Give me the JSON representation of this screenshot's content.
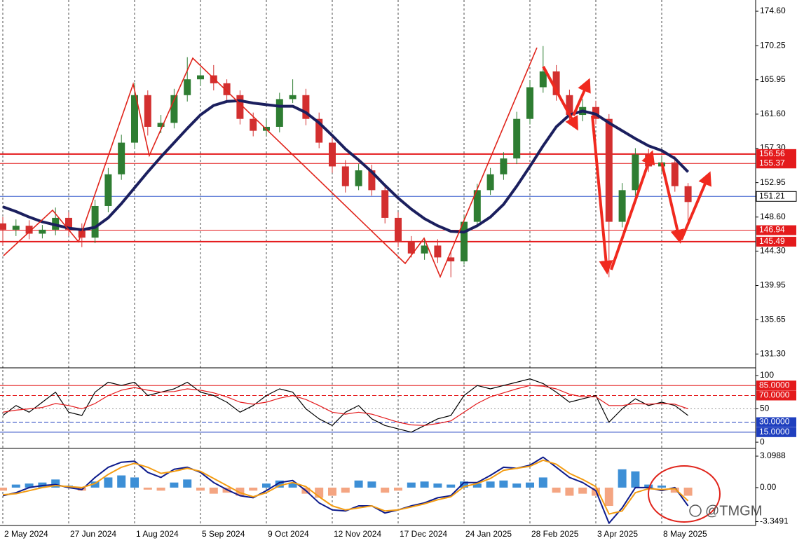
{
  "chart_data": [
    {
      "type": "candlestick",
      "categories": [
        "2 May 2024",
        null,
        null,
        null,
        null,
        "27 Jun 2024",
        null,
        null,
        null,
        null,
        "1 Aug 2024",
        null,
        null,
        null,
        null,
        "5 Sep 2024",
        null,
        null,
        null,
        null,
        "9 Oct 2024",
        null,
        null,
        null,
        null,
        "12 Nov 2024",
        null,
        null,
        null,
        null,
        "17 Dec 2024",
        null,
        null,
        null,
        null,
        "24 Jan 2025",
        null,
        null,
        null,
        null,
        "28 Feb 2025",
        null,
        null,
        null,
        null,
        "3 Apr 2025",
        null,
        null,
        null,
        null,
        "8 May 2025",
        null,
        null
      ],
      "open": [
        147.8,
        147,
        147.5,
        146.5,
        147,
        148.5,
        147,
        146,
        150,
        154,
        158,
        164,
        160,
        160.5,
        164,
        166,
        166.5,
        165.5,
        164,
        161,
        159.5,
        160,
        163.5,
        164,
        161,
        158,
        155,
        152.5,
        154.5,
        152,
        148.5,
        145.5,
        144,
        145,
        143.5,
        143,
        148,
        152,
        154,
        156,
        161,
        165,
        167,
        164,
        161.5,
        162.5,
        161,
        148,
        152,
        156.5,
        155,
        155.5,
        152.5
      ],
      "high": [
        148.6,
        148.3,
        148.2,
        147.6,
        149.8,
        149.2,
        147.8,
        150.8,
        154.8,
        159,
        165.6,
        164.6,
        161.5,
        164.8,
        168.8,
        167.5,
        167.8,
        166,
        164.6,
        161.8,
        160.9,
        164.3,
        166,
        164.8,
        161.8,
        158.7,
        155.8,
        155.3,
        155.2,
        152.6,
        149.2,
        146.2,
        145.9,
        145.8,
        144.4,
        148.8,
        152.8,
        154.8,
        156.8,
        161.9,
        165.9,
        170.2,
        167.8,
        164.7,
        163.5,
        163.3,
        161.6,
        152.9,
        157.3,
        157.2,
        156.4,
        156.3,
        152.9
      ],
      "low": [
        145,
        146.2,
        145.8,
        145.9,
        146.3,
        146.2,
        144.8,
        145.3,
        149.2,
        153.3,
        157.2,
        158.9,
        159.2,
        159.8,
        163.2,
        165.2,
        164.6,
        163.2,
        160.3,
        158.8,
        158.9,
        159.3,
        163,
        160.2,
        157.3,
        154.2,
        151.7,
        152,
        151.3,
        147.8,
        144.8,
        143.5,
        143.2,
        142.8,
        141,
        142.6,
        147.3,
        151.4,
        153.3,
        155.3,
        160.3,
        164.3,
        163.3,
        160.8,
        160.7,
        160.3,
        141,
        147.3,
        151.3,
        154.3,
        154.3,
        151.8,
        147.5
      ],
      "close": [
        147,
        147.5,
        146.5,
        147,
        148.5,
        147,
        146,
        150,
        154,
        158,
        164,
        160,
        160.5,
        164,
        166,
        166.5,
        165.5,
        164,
        161,
        159.5,
        160,
        163.5,
        164,
        161,
        158,
        155,
        152.5,
        154.5,
        152,
        148.5,
        145.5,
        144,
        145,
        143.5,
        143,
        148,
        152,
        154,
        156,
        161,
        165,
        167,
        164,
        161.5,
        162.5,
        161,
        148,
        152,
        156.5,
        155,
        155.5,
        152.5,
        150.5
      ],
      "up_color": "#2e7d32",
      "down_color": "#d32f2f",
      "lines": [
        {
          "color": "#1b1f5e",
          "style": "thick",
          "values": [
            149.9,
            149.3,
            148.6,
            148,
            147.6,
            147.2,
            147,
            147.3,
            148.5,
            150.3,
            152.3,
            154.3,
            156.2,
            158,
            159.8,
            161.5,
            162.7,
            163.2,
            163.3,
            163,
            162.8,
            162.6,
            162.6,
            161.8,
            160.5,
            158.9,
            157.2,
            155.8,
            154.3,
            152.6,
            151,
            149.6,
            148.4,
            147.5,
            146.8,
            146.7,
            147.5,
            148.6,
            150.2,
            152.5,
            155,
            157.6,
            160,
            161.5,
            162,
            161.6,
            160.5,
            159.5,
            158.5,
            157.6,
            157,
            156,
            154.3
          ]
        }
      ],
      "ylim": [
        129.64,
        176.02
      ],
      "yticks": [
        {
          "value": 174.6,
          "label": "174.60"
        },
        170.25,
        165.95,
        {
          "value": 161.6,
          "label": "161.60"
        },
        {
          "value": 157.3,
          "label": "157.30"
        },
        152.95,
        {
          "value": 148.6,
          "label": "148.60"
        },
        {
          "value": 144.3,
          "label": "144.30"
        },
        139.95,
        135.65,
        {
          "value": 131.3,
          "label": "131.30"
        }
      ],
      "levels": [
        {
          "value": 156.56,
          "color": "#e41a1c",
          "style": "thick"
        },
        {
          "value": 155.37,
          "color": "#e41a1c",
          "style": "thin"
        },
        {
          "value": 151.21,
          "color": "#3a5fcd",
          "style": "thin",
          "label_fill": "#ffffff"
        },
        {
          "value": 146.94,
          "color": "#e41a1c",
          "style": "thin"
        },
        {
          "value": 145.49,
          "color": "#e41a1c",
          "style": "thick"
        }
      ]
    },
    {
      "type": "line",
      "series": [
        {
          "color": "#000000",
          "values": [
            40,
            55,
            45,
            60,
            75,
            45,
            40,
            75,
            90,
            85,
            90,
            70,
            75,
            80,
            90,
            75,
            70,
            60,
            45,
            55,
            70,
            80,
            75,
            50,
            35,
            25,
            45,
            55,
            35,
            25,
            20,
            15,
            25,
            35,
            40,
            70,
            85,
            80,
            85,
            90,
            95,
            88,
            75,
            60,
            65,
            70,
            30,
            50,
            65,
            55,
            60,
            55,
            40
          ]
        },
        {
          "color": "#e41a1c",
          "values": [
            45,
            48,
            50,
            52,
            58,
            55,
            50,
            58,
            70,
            78,
            82,
            78,
            75,
            76,
            80,
            78,
            74,
            68,
            60,
            57,
            60,
            66,
            70,
            64,
            55,
            45,
            42,
            45,
            42,
            36,
            30,
            26,
            25,
            28,
            32,
            45,
            58,
            68,
            74,
            80,
            85,
            84,
            80,
            72,
            68,
            68,
            55,
            55,
            58,
            57,
            58,
            57,
            50
          ]
        }
      ],
      "ylim": [
        -8.3,
        109.4
      ],
      "yticks": [
        0,
        50,
        100
      ],
      "levels": [
        {
          "value": 85,
          "label": "85.0000",
          "color": "#e41a1c",
          "style": "thin"
        },
        {
          "value": 70,
          "label": "70.0000",
          "color": "#e41a1c",
          "style": "dashed"
        },
        {
          "value": 50,
          "color": "#9e9e9e",
          "style": "dotted"
        },
        {
          "value": 30,
          "label": "30.0000",
          "color": "#1f3fbf",
          "style": "dashed"
        },
        {
          "value": 15,
          "label": "15.0000",
          "color": "#1f3fbf",
          "style": "thin"
        }
      ]
    },
    {
      "type": "macd",
      "histogram": {
        "positive_color": "#3d8fd6",
        "negative_color": "#f4a582",
        "values": [
          -0.3,
          0.3,
          0.4,
          0.5,
          0.8,
          0.2,
          -0.3,
          0.6,
          1.0,
          1.2,
          1.0,
          -0.2,
          -0.3,
          0.5,
          0.8,
          -0.3,
          -0.6,
          -0.5,
          -0.8,
          -0.3,
          0.4,
          0.7,
          0.5,
          -0.6,
          -1.0,
          -0.8,
          -0.5,
          0.7,
          0.6,
          -0.5,
          -0.3,
          0.5,
          0.6,
          0.4,
          0.3,
          0.6,
          0.4,
          0.6,
          0.7,
          0.4,
          0.5,
          1.0,
          -0.5,
          -0.8,
          -0.6,
          -0.8,
          -1.8,
          1.8,
          1.6,
          0.3,
          0.2,
          -0.5,
          -0.8
        ]
      },
      "series": [
        {
          "color": "#0d1b8c",
          "values": [
            -0.8,
            -0.5,
            0,
            0.2,
            0.3,
            0,
            -0.2,
            1.0,
            2.0,
            2.5,
            2.6,
            1.5,
            1.0,
            1.8,
            2.0,
            1.5,
            0.5,
            -0.2,
            -0.8,
            -1.0,
            -0.3,
            0.5,
            0.7,
            -0.3,
            -1.5,
            -2.2,
            -2.3,
            -1.8,
            -1.8,
            -2.5,
            -2.2,
            -1.8,
            -1.5,
            -1.0,
            -0.8,
            0.5,
            0.5,
            1.2,
            2.0,
            1.9,
            2.2,
            3.0,
            2.0,
            1.0,
            0.5,
            -0.3,
            -3.5,
            -2.0,
            0,
            0,
            -0.3,
            0,
            -1.8
          ]
        },
        {
          "color": "#f39c12",
          "values": [
            -0.7,
            -0.6,
            -0.3,
            0,
            0.2,
            0.1,
            0,
            0.4,
            1.3,
            2.0,
            2.4,
            2.0,
            1.4,
            1.6,
            1.9,
            1.6,
            0.9,
            0.2,
            -0.5,
            -0.9,
            -0.5,
            0.2,
            0.5,
            0.1,
            -0.9,
            -1.8,
            -2.2,
            -2.0,
            -1.8,
            -2.3,
            -2.2,
            -1.9,
            -1.6,
            -1.2,
            -0.9,
            0.1,
            0.4,
            0.9,
            1.7,
            1.9,
            2.1,
            2.7,
            2.3,
            1.4,
            0.8,
            0.1,
            -2.6,
            -2.3,
            -0.5,
            -0.1,
            -0.2,
            -0.1,
            -1.3
          ]
        }
      ],
      "ylim": [
        -3.66,
        3.79
      ],
      "yticks": [
        3.0988,
        {
          "value": 0,
          "label": "0.00"
        },
        -3.3491
      ]
    }
  ],
  "watermark": "@TMGM"
}
